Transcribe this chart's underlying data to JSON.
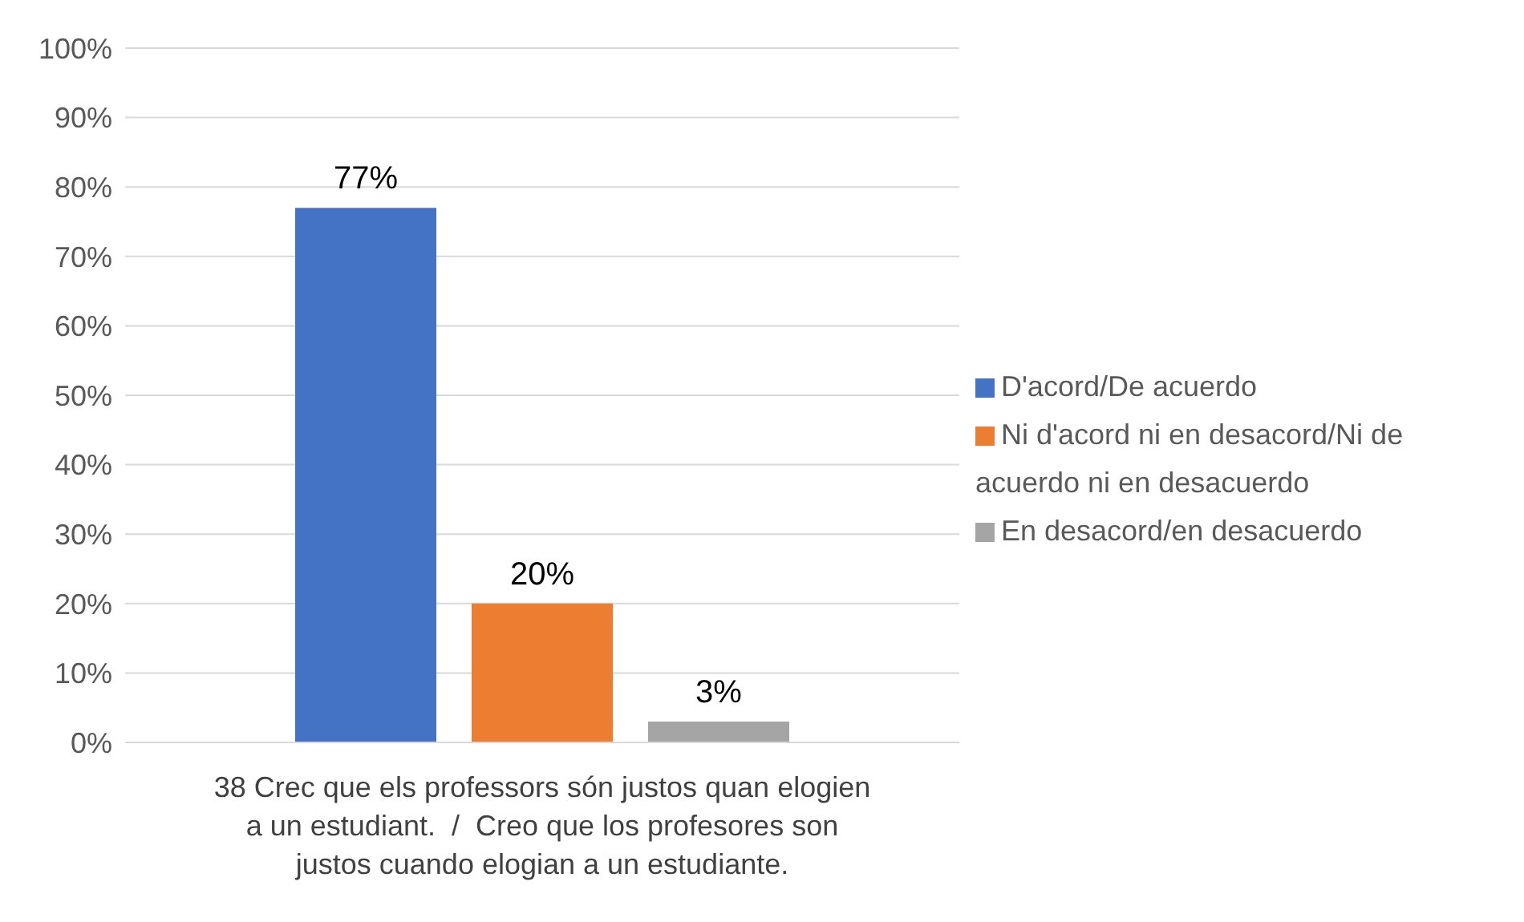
{
  "chart_data": {
    "type": "bar",
    "categories": [
      "38 Crec que els professors són justos quan elogien a un estudiant.  /  Creo que los profesores son justos cuando elogian a un estudiante."
    ],
    "series": [
      {
        "name": "D'acord/De acuerdo",
        "color": "#4472c4",
        "values": [
          77
        ],
        "value_labels": [
          "77%"
        ]
      },
      {
        "name": "Ni d'acord ni en desacord/Ni de acuerdo ni en desacuerdo",
        "color": "#ed7d31",
        "values": [
          20
        ],
        "value_labels": [
          "20%"
        ]
      },
      {
        "name": "En desacord/en desacuerdo",
        "color": "#a5a5a5",
        "values": [
          3
        ],
        "value_labels": [
          "3%"
        ]
      }
    ],
    "ylim": [
      0,
      100
    ],
    "yticks": [
      {
        "value": 0,
        "label": "0%"
      },
      {
        "value": 10,
        "label": "10%"
      },
      {
        "value": 20,
        "label": "20%"
      },
      {
        "value": 30,
        "label": "30%"
      },
      {
        "value": 40,
        "label": "40%"
      },
      {
        "value": 50,
        "label": "50%"
      },
      {
        "value": 60,
        "label": "60%"
      },
      {
        "value": 70,
        "label": "70%"
      },
      {
        "value": 80,
        "label": "80%"
      },
      {
        "value": 90,
        "label": "90%"
      },
      {
        "value": 100,
        "label": "100%"
      }
    ],
    "grid": "y",
    "legend": "right"
  }
}
